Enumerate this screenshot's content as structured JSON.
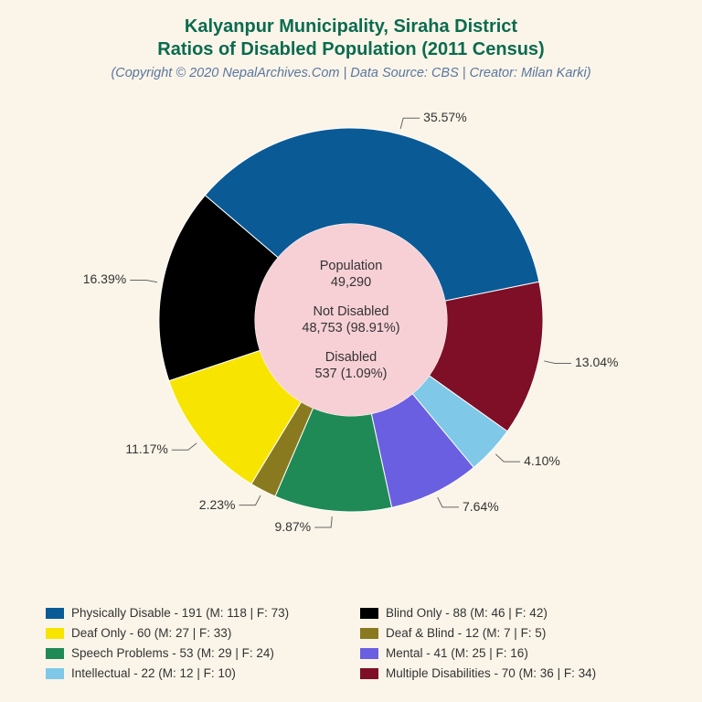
{
  "title_line1": "Kalyanpur Municipality, Siraha District",
  "title_line2": "Ratios of Disabled Population (2011 Census)",
  "subtitle": "(Copyright © 2020 NepalArchives.Com | Data Source: CBS | Creator: Milan Karki)",
  "background_color": "#fbf5e9",
  "center": {
    "bg_color": "#f7d0d6",
    "population_label": "Population",
    "population_value": "49,290",
    "not_disabled_label": "Not Disabled",
    "not_disabled_value": "48,753 (98.91%)",
    "disabled_label": "Disabled",
    "disabled_value": "537 (1.09%)"
  },
  "chart": {
    "type": "donut",
    "outer_radius": 210,
    "inner_radius": 105,
    "start_angle_deg": -49.5,
    "label_fontsize": 14,
    "leader_color": "#666666",
    "background_color": "#fbf5e9",
    "slices": [
      {
        "key": "physically",
        "percent": 35.57,
        "color": "#0a5a96",
        "label": "35.57%",
        "legend": "Physically Disable - 191 (M: 118 | F: 73)"
      },
      {
        "key": "multiple",
        "percent": 13.04,
        "color": "#7e0f27",
        "label": "13.04%",
        "legend": "Multiple Disabilities - 70 (M: 36 | F: 34)"
      },
      {
        "key": "intellectual",
        "percent": 4.1,
        "color": "#7fc8e8",
        "label": "4.10%",
        "legend": "Intellectual - 22 (M: 12 | F: 10)"
      },
      {
        "key": "mental",
        "percent": 7.64,
        "color": "#6a5fe0",
        "label": "7.64%",
        "legend": "Mental - 41 (M: 25 | F: 16)"
      },
      {
        "key": "speech",
        "percent": 9.87,
        "color": "#1f8a56",
        "label": "9.87%",
        "legend": "Speech Problems - 53 (M: 29 | F: 24)"
      },
      {
        "key": "deafblind",
        "percent": 2.23,
        "color": "#8a7a1f",
        "label": "2.23%",
        "legend": "Deaf & Blind - 12 (M: 7 | F: 5)"
      },
      {
        "key": "deaf",
        "percent": 11.17,
        "color": "#f7e400",
        "label": "11.17%",
        "legend": "Deaf Only - 60 (M: 27 | F: 33)"
      },
      {
        "key": "blind",
        "percent": 16.39,
        "color": "#000000",
        "label": "Blind Only - 88 (M: 46 | F: 42)",
        "pct_label": "16.39%",
        "legend": "Blind Only - 88 (M: 46 | F: 42)"
      }
    ]
  },
  "legend_order": [
    "physically",
    "blind",
    "deaf",
    "deafblind",
    "speech",
    "mental",
    "intellectual",
    "multiple"
  ]
}
